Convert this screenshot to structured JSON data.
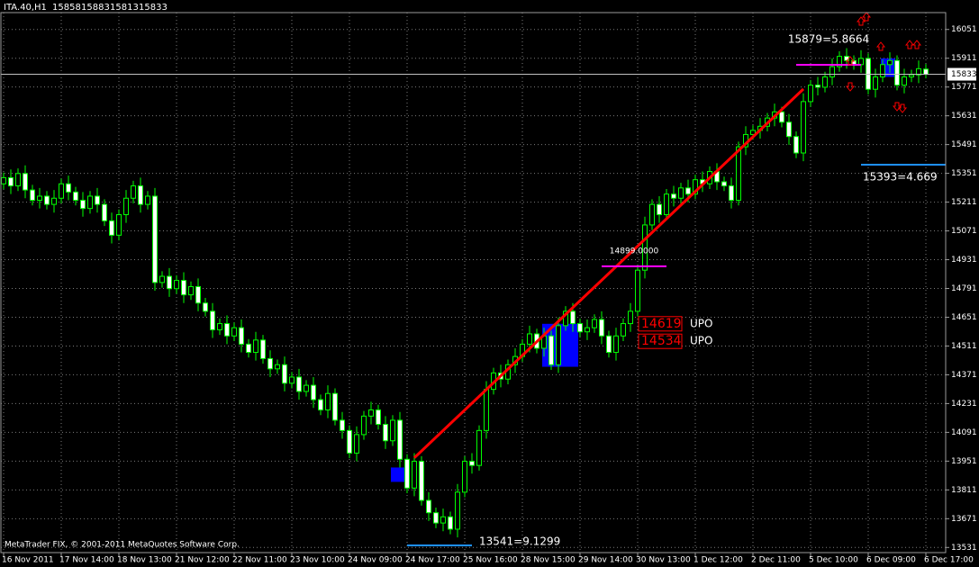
{
  "chart_data": {
    "type": "candlestick",
    "title": "ITA.40,H1",
    "header_values": [
      15858,
      15883,
      15813,
      15833
    ],
    "credit": "MetaTrader FIX, © 2001-2011 MetaQuotes Software Corp.",
    "current_price": 15833,
    "background": "#000000",
    "grid": true,
    "grid_color": "#7a7a7a",
    "wick_color": "#00ff00",
    "bull_body": "#000000",
    "bear_body": "#ffffff",
    "ylim": [
      13506,
      16133
    ],
    "yticks": [
      16051,
      15911,
      15771,
      15631,
      15491,
      15351,
      15211,
      15071,
      14931,
      14791,
      14651,
      14511,
      14371,
      14231,
      14091,
      13951,
      13811,
      13671,
      13531
    ],
    "categories": [
      "16 Nov 2011",
      null,
      null,
      null,
      null,
      null,
      null,
      null,
      "17 Nov 14:00",
      null,
      null,
      null,
      null,
      null,
      null,
      null,
      "18 Nov 13:00",
      null,
      null,
      null,
      null,
      null,
      null,
      null,
      "21 Nov 12:00",
      null,
      null,
      null,
      null,
      null,
      null,
      null,
      "22 Nov 11:00",
      null,
      null,
      null,
      null,
      null,
      null,
      null,
      "23 Nov 10:00",
      null,
      null,
      null,
      null,
      null,
      null,
      null,
      "24 Nov 09:00",
      null,
      null,
      null,
      null,
      null,
      null,
      null,
      "24 Nov 17:00",
      null,
      null,
      null,
      null,
      null,
      null,
      null,
      "25 Nov 16:00",
      null,
      null,
      null,
      null,
      null,
      null,
      null,
      "28 Nov 15:00",
      null,
      null,
      null,
      null,
      null,
      null,
      null,
      "29 Nov 14:00",
      null,
      null,
      null,
      null,
      null,
      null,
      null,
      "30 Nov 13:00",
      null,
      null,
      null,
      null,
      null,
      null,
      null,
      "1 Dec 12:00",
      null,
      null,
      null,
      null,
      null,
      null,
      null,
      "2 Dec 11:00",
      null,
      null,
      null,
      null,
      null,
      null,
      null,
      "5 Dec 10:00",
      null,
      null,
      null,
      null,
      null,
      null,
      null,
      "6 Dec 09:00",
      null,
      null,
      null,
      null,
      null,
      null,
      null,
      "6 Dec 17:00"
    ],
    "ohlc": [
      [
        15300,
        15355,
        15275,
        15330
      ],
      [
        15330,
        15370,
        15250,
        15290
      ],
      [
        15290,
        15375,
        15265,
        15350
      ],
      [
        15350,
        15390,
        15230,
        15270
      ],
      [
        15270,
        15295,
        15195,
        15220
      ],
      [
        15220,
        15280,
        15180,
        15240
      ],
      [
        15240,
        15265,
        15175,
        15200
      ],
      [
        15200,
        15270,
        15160,
        15230
      ],
      [
        15230,
        15325,
        15205,
        15300
      ],
      [
        15300,
        15340,
        15220,
        15260
      ],
      [
        15260,
        15285,
        15195,
        15220
      ],
      [
        15220,
        15260,
        15140,
        15180
      ],
      [
        15180,
        15265,
        15155,
        15240
      ],
      [
        15240,
        15280,
        15160,
        15200
      ],
      [
        15200,
        15225,
        15095,
        15120
      ],
      [
        15120,
        15160,
        15010,
        15050
      ],
      [
        15050,
        15175,
        15025,
        15150
      ],
      [
        15150,
        15270,
        15110,
        15230
      ],
      [
        15230,
        15315,
        15205,
        15290
      ],
      [
        15290,
        15330,
        15160,
        15200
      ],
      [
        15200,
        15265,
        15175,
        15240
      ],
      [
        15240,
        15280,
        14780,
        14820
      ],
      [
        14820,
        14875,
        14795,
        14850
      ],
      [
        14850,
        14890,
        14750,
        14790
      ],
      [
        14790,
        14855,
        14765,
        14830
      ],
      [
        14830,
        14870,
        14720,
        14760
      ],
      [
        14760,
        14825,
        14735,
        14800
      ],
      [
        14800,
        14840,
        14680,
        14720
      ],
      [
        14720,
        14745,
        14655,
        14680
      ],
      [
        14680,
        14720,
        14550,
        14590
      ],
      [
        14590,
        14645,
        14565,
        14620
      ],
      [
        14620,
        14660,
        14520,
        14560
      ],
      [
        14560,
        14625,
        14535,
        14600
      ],
      [
        14600,
        14640,
        14480,
        14520
      ],
      [
        14520,
        14545,
        14455,
        14480
      ],
      [
        14480,
        14580,
        14440,
        14540
      ],
      [
        14540,
        14565,
        14425,
        14450
      ],
      [
        14450,
        14490,
        14360,
        14400
      ],
      [
        14400,
        14445,
        14375,
        14420
      ],
      [
        14420,
        14460,
        14290,
        14330
      ],
      [
        14330,
        14385,
        14305,
        14360
      ],
      [
        14360,
        14400,
        14250,
        14290
      ],
      [
        14290,
        14345,
        14265,
        14320
      ],
      [
        14320,
        14360,
        14210,
        14250
      ],
      [
        14250,
        14275,
        14175,
        14200
      ],
      [
        14200,
        14320,
        14160,
        14280
      ],
      [
        14280,
        14305,
        14125,
        14150
      ],
      [
        14150,
        14190,
        14060,
        14100
      ],
      [
        14100,
        14125,
        13965,
        13990
      ],
      [
        13990,
        14120,
        13950,
        14080
      ],
      [
        14080,
        14195,
        14055,
        14170
      ],
      [
        14170,
        14240,
        14130,
        14200
      ],
      [
        14200,
        14225,
        14105,
        14130
      ],
      [
        14130,
        14170,
        14010,
        14050
      ],
      [
        14050,
        14175,
        14025,
        14150
      ],
      [
        14150,
        14190,
        13920,
        13960
      ],
      [
        13960,
        13985,
        13795,
        13820
      ],
      [
        13820,
        13990,
        13780,
        13950
      ],
      [
        13950,
        13975,
        13735,
        13760
      ],
      [
        13760,
        13800,
        13660,
        13700
      ],
      [
        13700,
        13725,
        13625,
        13650
      ],
      [
        13650,
        13720,
        13610,
        13680
      ],
      [
        13680,
        13705,
        13595,
        13620
      ],
      [
        13620,
        13840,
        13580,
        13800
      ],
      [
        13800,
        13975,
        13775,
        13950
      ],
      [
        13950,
        13990,
        13890,
        13930
      ],
      [
        13930,
        14125,
        13905,
        14100
      ],
      [
        14100,
        14340,
        14060,
        14300
      ],
      [
        14300,
        14405,
        14275,
        14380
      ],
      [
        14380,
        14420,
        14310,
        14350
      ],
      [
        14350,
        14445,
        14325,
        14420
      ],
      [
        14420,
        14500,
        14380,
        14460
      ],
      [
        14460,
        14545,
        14435,
        14520
      ],
      [
        14520,
        14610,
        14480,
        14570
      ],
      [
        14570,
        14595,
        14475,
        14500
      ],
      [
        14500,
        14600,
        14460,
        14560
      ],
      [
        14560,
        14585,
        14395,
        14420
      ],
      [
        14420,
        14650,
        14380,
        14610
      ],
      [
        14610,
        14705,
        14585,
        14680
      ],
      [
        14680,
        14720,
        14580,
        14620
      ],
      [
        14620,
        14645,
        14555,
        14580
      ],
      [
        14580,
        14640,
        14540,
        14600
      ],
      [
        14600,
        14665,
        14575,
        14640
      ],
      [
        14640,
        14680,
        14520,
        14560
      ],
      [
        14560,
        14585,
        14455,
        14480
      ],
      [
        14480,
        14600,
        14440,
        14560
      ],
      [
        14560,
        14645,
        14535,
        14620
      ],
      [
        14620,
        14720,
        14580,
        14680
      ],
      [
        14680,
        14905,
        14655,
        14880
      ],
      [
        14880,
        15140,
        14840,
        15100
      ],
      [
        15100,
        15225,
        15075,
        15200
      ],
      [
        15200,
        15240,
        15110,
        15150
      ],
      [
        15150,
        15275,
        15125,
        15250
      ],
      [
        15250,
        15290,
        15190,
        15230
      ],
      [
        15230,
        15305,
        15205,
        15280
      ],
      [
        15280,
        15320,
        15210,
        15250
      ],
      [
        15250,
        15345,
        15225,
        15320
      ],
      [
        15320,
        15360,
        15260,
        15300
      ],
      [
        15300,
        15385,
        15275,
        15360
      ],
      [
        15360,
        15400,
        15270,
        15310
      ],
      [
        15310,
        15335,
        15265,
        15290
      ],
      [
        15290,
        15330,
        15180,
        15220
      ],
      [
        15220,
        15505,
        15195,
        15480
      ],
      [
        15480,
        15580,
        15440,
        15540
      ],
      [
        15540,
        15585,
        15515,
        15560
      ],
      [
        15560,
        15620,
        15520,
        15580
      ],
      [
        15580,
        15645,
        15555,
        15620
      ],
      [
        15620,
        15690,
        15580,
        15650
      ],
      [
        15650,
        15675,
        15575,
        15600
      ],
      [
        15600,
        15640,
        15490,
        15530
      ],
      [
        15530,
        15555,
        15425,
        15450
      ],
      [
        15450,
        15740,
        15410,
        15700
      ],
      [
        15700,
        15805,
        15675,
        15780
      ],
      [
        15780,
        15820,
        15730,
        15770
      ],
      [
        15770,
        15845,
        15745,
        15820
      ],
      [
        15820,
        15910,
        15780,
        15870
      ],
      [
        15870,
        15945,
        15845,
        15920
      ],
      [
        15920,
        15960,
        15860,
        15900
      ],
      [
        15900,
        15925,
        15855,
        15880
      ],
      [
        15880,
        15950,
        15840,
        15910
      ],
      [
        15910,
        15935,
        15735,
        15760
      ],
      [
        15760,
        15860,
        15720,
        15820
      ],
      [
        15820,
        15905,
        15795,
        15880
      ],
      [
        15880,
        15940,
        15840,
        15900
      ],
      [
        15900,
        15925,
        15755,
        15780
      ],
      [
        15780,
        15860,
        15740,
        15820
      ],
      [
        15820,
        15855,
        15795,
        15830
      ],
      [
        15830,
        15900,
        15790,
        15860
      ],
      [
        15858,
        15883,
        15813,
        15833
      ]
    ],
    "levels": [
      {
        "value": 15879,
        "label": "15879=5.8664",
        "color": "#ff00ff",
        "start": 110,
        "end": 119
      },
      {
        "value": 14899,
        "label": "14899.0000",
        "color": "#ff00ff",
        "start": 83,
        "end": 92
      },
      {
        "value": 13541,
        "label": "13541=9.1299",
        "color": "#1e90ff",
        "start": 56,
        "end": 65
      },
      {
        "value": 15393,
        "label": "15393=4.669",
        "color": "#1e90ff",
        "start": 119,
        "end": 131
      }
    ],
    "trendline": {
      "color": "#ff0000",
      "start": [
        57,
        13967
      ],
      "end": [
        111,
        15761
      ]
    },
    "zones": [
      {
        "color": "#0000ff",
        "start": 75,
        "end": 80,
        "top": 14619,
        "bottom": 14410
      },
      {
        "color": "#0000ff",
        "start": 54,
        "end": 56,
        "top": 13920,
        "bottom": 13850
      },
      {
        "color": "#0000ff",
        "start": 122,
        "end": 124,
        "top": 15910,
        "bottom": 15820
      }
    ],
    "signals": [
      {
        "value": 14619,
        "text": "UPO",
        "at": 88
      },
      {
        "value": 14534,
        "text": "UPO",
        "at": 86
      }
    ]
  }
}
